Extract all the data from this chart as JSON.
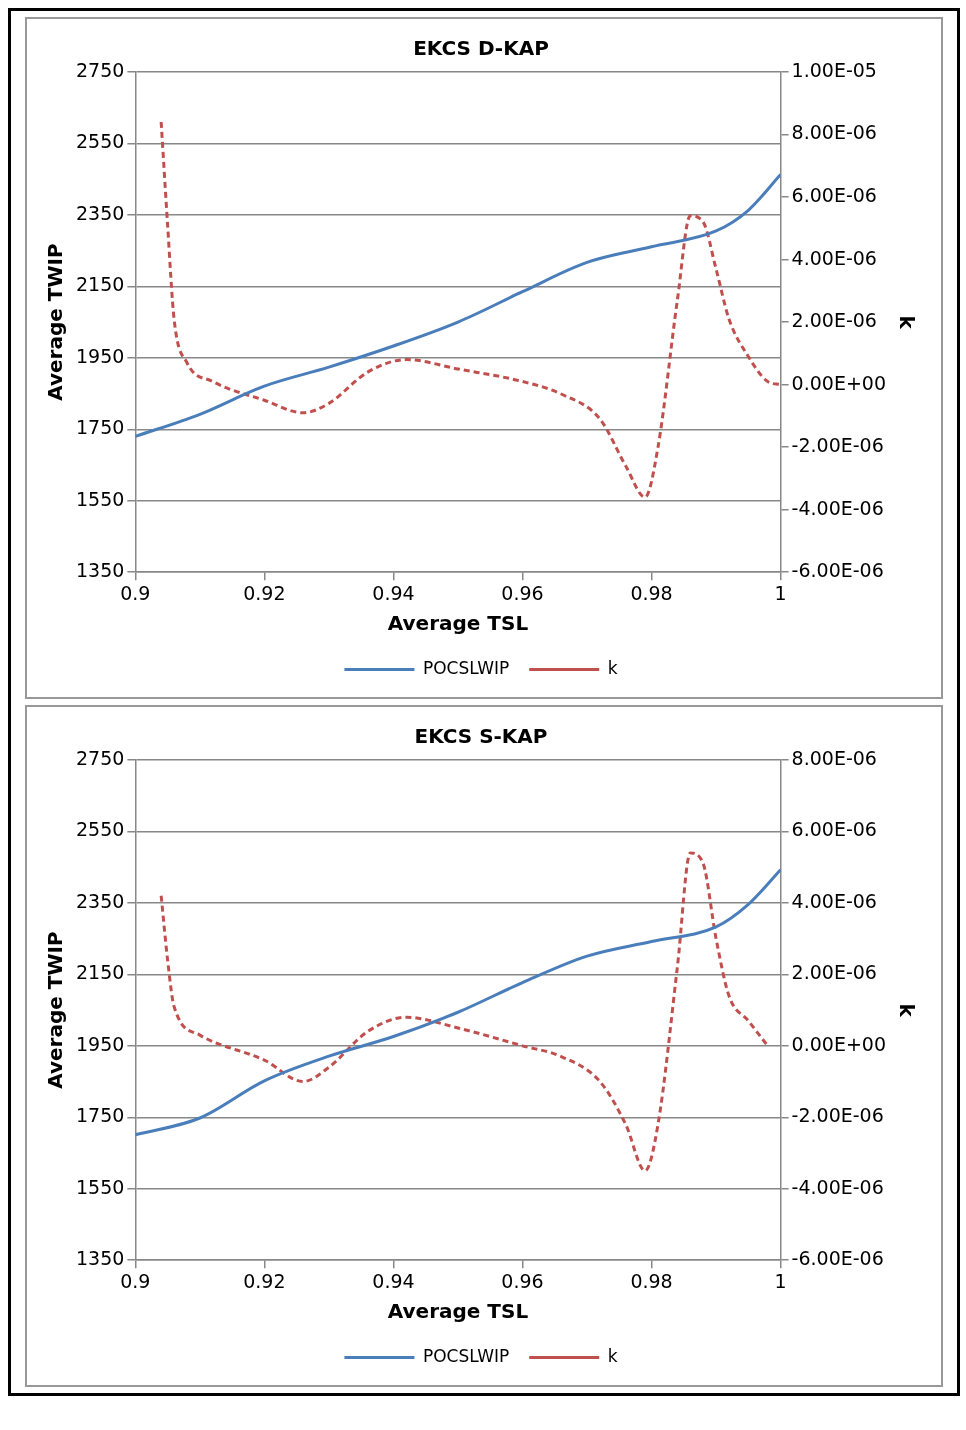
{
  "chart_data": [
    {
      "type": "line",
      "title": "EKCS D-KAP",
      "xlabel": "Average TSL",
      "ylabel": "Average TWIP",
      "y2label": "k",
      "xlim": [
        0.9,
        1
      ],
      "xticks": [
        0.9,
        0.92,
        0.94,
        0.96,
        0.98,
        1
      ],
      "ylim": [
        1350,
        2750
      ],
      "yticks": [
        1350,
        1550,
        1750,
        1950,
        2150,
        2350,
        2550,
        2750
      ],
      "y2lim": [
        -6e-06,
        1e-05
      ],
      "y2ticks": [
        {
          "value": -6e-06,
          "label": "-6.00E-06"
        },
        {
          "value": -4e-06,
          "label": "-4.00E-06"
        },
        {
          "value": -2e-06,
          "label": "-2.00E-06"
        },
        {
          "value": 0,
          "label": "0.00E+00"
        },
        {
          "value": 2e-06,
          "label": "2.00E-06"
        },
        {
          "value": 4e-06,
          "label": "4.00E-06"
        },
        {
          "value": 6e-06,
          "label": "6.00E-06"
        },
        {
          "value": 8e-06,
          "label": "8.00E-06"
        },
        {
          "value": 1e-05,
          "label": "1.00E-05"
        }
      ],
      "grid": "y",
      "legend": "bottom",
      "series": [
        {
          "name": "POCSLWIP",
          "color": "#4a7ebb",
          "line_style": "solid",
          "x": [
            0.9,
            0.91,
            0.92,
            0.93,
            0.94,
            0.95,
            0.96,
            0.97,
            0.98,
            0.99,
            0.995,
            1
          ],
          "values": [
            1730,
            1792,
            1871,
            1924,
            1983,
            2050,
            2135,
            2217,
            2261,
            2305,
            2363,
            2463
          ]
        },
        {
          "name": "k",
          "color": "#c0504d",
          "line_style": "dashed",
          "axis": "y2",
          "x": [
            0.904,
            0.905,
            0.906,
            0.908,
            0.912,
            0.92,
            0.926,
            0.93,
            0.936,
            0.942,
            0.95,
            0.96,
            0.966,
            0.972,
            0.976,
            0.979,
            0.981,
            0.984,
            0.986,
            0.988,
            0.99,
            0.992,
            0.995,
            0.998,
            1
          ],
          "values": [
            8.4e-06,
            5.1e-06,
            2.1e-06,
            7e-07,
            1e-07,
            -5e-07,
            -9e-07,
            -6e-07,
            4e-07,
            8e-07,
            5e-07,
            1e-07,
            -3e-07,
            -1.1e-06,
            -2.6e-06,
            -3.6e-06,
            -2e-06,
            2.7e-06,
            5.4e-06,
            5.2e-06,
            3.7e-06,
            2.1e-06,
            9e-07,
            1e-07,
            0
          ]
        }
      ]
    },
    {
      "type": "line",
      "title": "EKCS S-KAP",
      "xlabel": "Average TSL",
      "ylabel": "Average TWIP",
      "y2label": "k",
      "xlim": [
        0.9,
        1
      ],
      "xticks": [
        0.9,
        0.92,
        0.94,
        0.96,
        0.98,
        1
      ],
      "ylim": [
        1350,
        2750
      ],
      "yticks": [
        1350,
        1550,
        1750,
        1950,
        2150,
        2350,
        2550,
        2750
      ],
      "y2lim": [
        -6e-06,
        8e-06
      ],
      "y2ticks": [
        {
          "value": -6e-06,
          "label": "-6.00E-06"
        },
        {
          "value": -4e-06,
          "label": "-4.00E-06"
        },
        {
          "value": -2e-06,
          "label": "-2.00E-06"
        },
        {
          "value": 0,
          "label": "0.00E+00"
        },
        {
          "value": 2e-06,
          "label": "2.00E-06"
        },
        {
          "value": 4e-06,
          "label": "4.00E-06"
        },
        {
          "value": 6e-06,
          "label": "6.00E-06"
        },
        {
          "value": 8e-06,
          "label": "8.00E-06"
        }
      ],
      "grid": "y",
      "legend": "bottom",
      "series": [
        {
          "name": "POCSLWIP",
          "color": "#4a7ebb",
          "line_style": "solid",
          "x": [
            0.9,
            0.91,
            0.92,
            0.93,
            0.94,
            0.95,
            0.96,
            0.97,
            0.98,
            0.99,
            0.995,
            1
          ],
          "values": [
            1701,
            1748,
            1852,
            1921,
            1976,
            2044,
            2127,
            2201,
            2242,
            2283,
            2346,
            2443
          ]
        },
        {
          "name": "k",
          "color": "#c0504d",
          "line_style": "dashed",
          "axis": "y2",
          "x": [
            0.904,
            0.905,
            0.906,
            0.91,
            0.92,
            0.926,
            0.93,
            0.936,
            0.942,
            0.95,
            0.96,
            0.966,
            0.972,
            0.976,
            0.979,
            0.981,
            0.984,
            0.986,
            0.988,
            0.99,
            0.992,
            0.995,
            0.998
          ],
          "values": [
            4.2e-06,
            2.4e-06,
            1.1e-06,
            3e-07,
            -4e-07,
            -1e-06,
            -6e-07,
            4e-07,
            8e-07,
            5e-07,
            0,
            -3e-07,
            -1e-06,
            -2.2e-06,
            -3.5e-06,
            -2.2e-06,
            2.2e-06,
            5.4e-06,
            5.1e-06,
            3e-06,
            1.4e-06,
            7e-07,
            0
          ]
        }
      ]
    }
  ]
}
